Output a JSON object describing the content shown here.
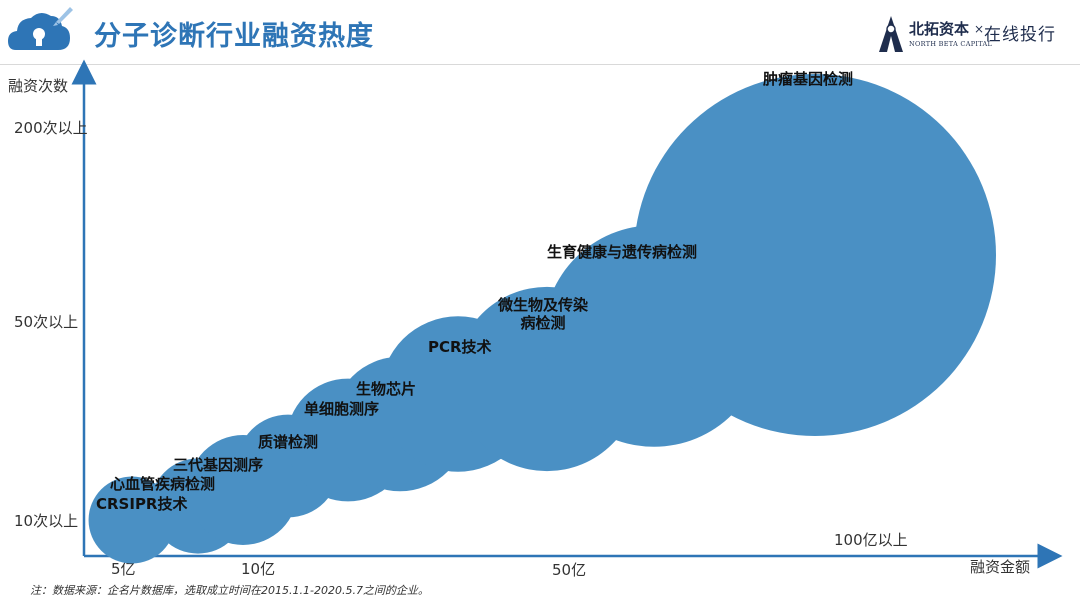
{
  "header": {
    "title": "分子诊断行业融资热度",
    "brand_name": "北拓资本",
    "brand_sub": "NORTH BETA CAPITAL",
    "brand_x": "×",
    "brand_partner": "在线投行",
    "accent_color": "#2e75b6",
    "logo_icon": "cloud-lock-rocket-icon"
  },
  "chart_data": {
    "type": "bubble",
    "xlabel": "融资金额",
    "ylabel": "融资次数",
    "x_ticks": [
      "5亿",
      "10亿",
      "50亿",
      "100亿以上"
    ],
    "y_ticks": [
      "10次以上",
      "50次以上",
      "200次以上"
    ],
    "bubble_color": "#4a90c4",
    "points": [
      {
        "label": "CRSIPR技术",
        "size": 1.0
      },
      {
        "label": "心血管疾病检测",
        "size": 1.2
      },
      {
        "label": "三代基因测序",
        "size": 1.6
      },
      {
        "label": "质谱检测",
        "size": 1.4
      },
      {
        "label": "单细胞测序",
        "size": 2.0
      },
      {
        "label": "生物芯片",
        "size": 2.4
      },
      {
        "label": "PCR技术",
        "size": 3.2
      },
      {
        "label": "微生物及传染病检测",
        "label_lines": [
          "微生物及传染",
          "病检测"
        ],
        "size": 4.5
      },
      {
        "label": "生育健康与遗传病检测",
        "size": 6.5
      },
      {
        "label": "肿瘤基因检测",
        "size": 16.0
      }
    ]
  },
  "footnote": "注：数据来源：企名片数据库，选取成立时间在2015.1.1-2020.5.7之间的企业。"
}
